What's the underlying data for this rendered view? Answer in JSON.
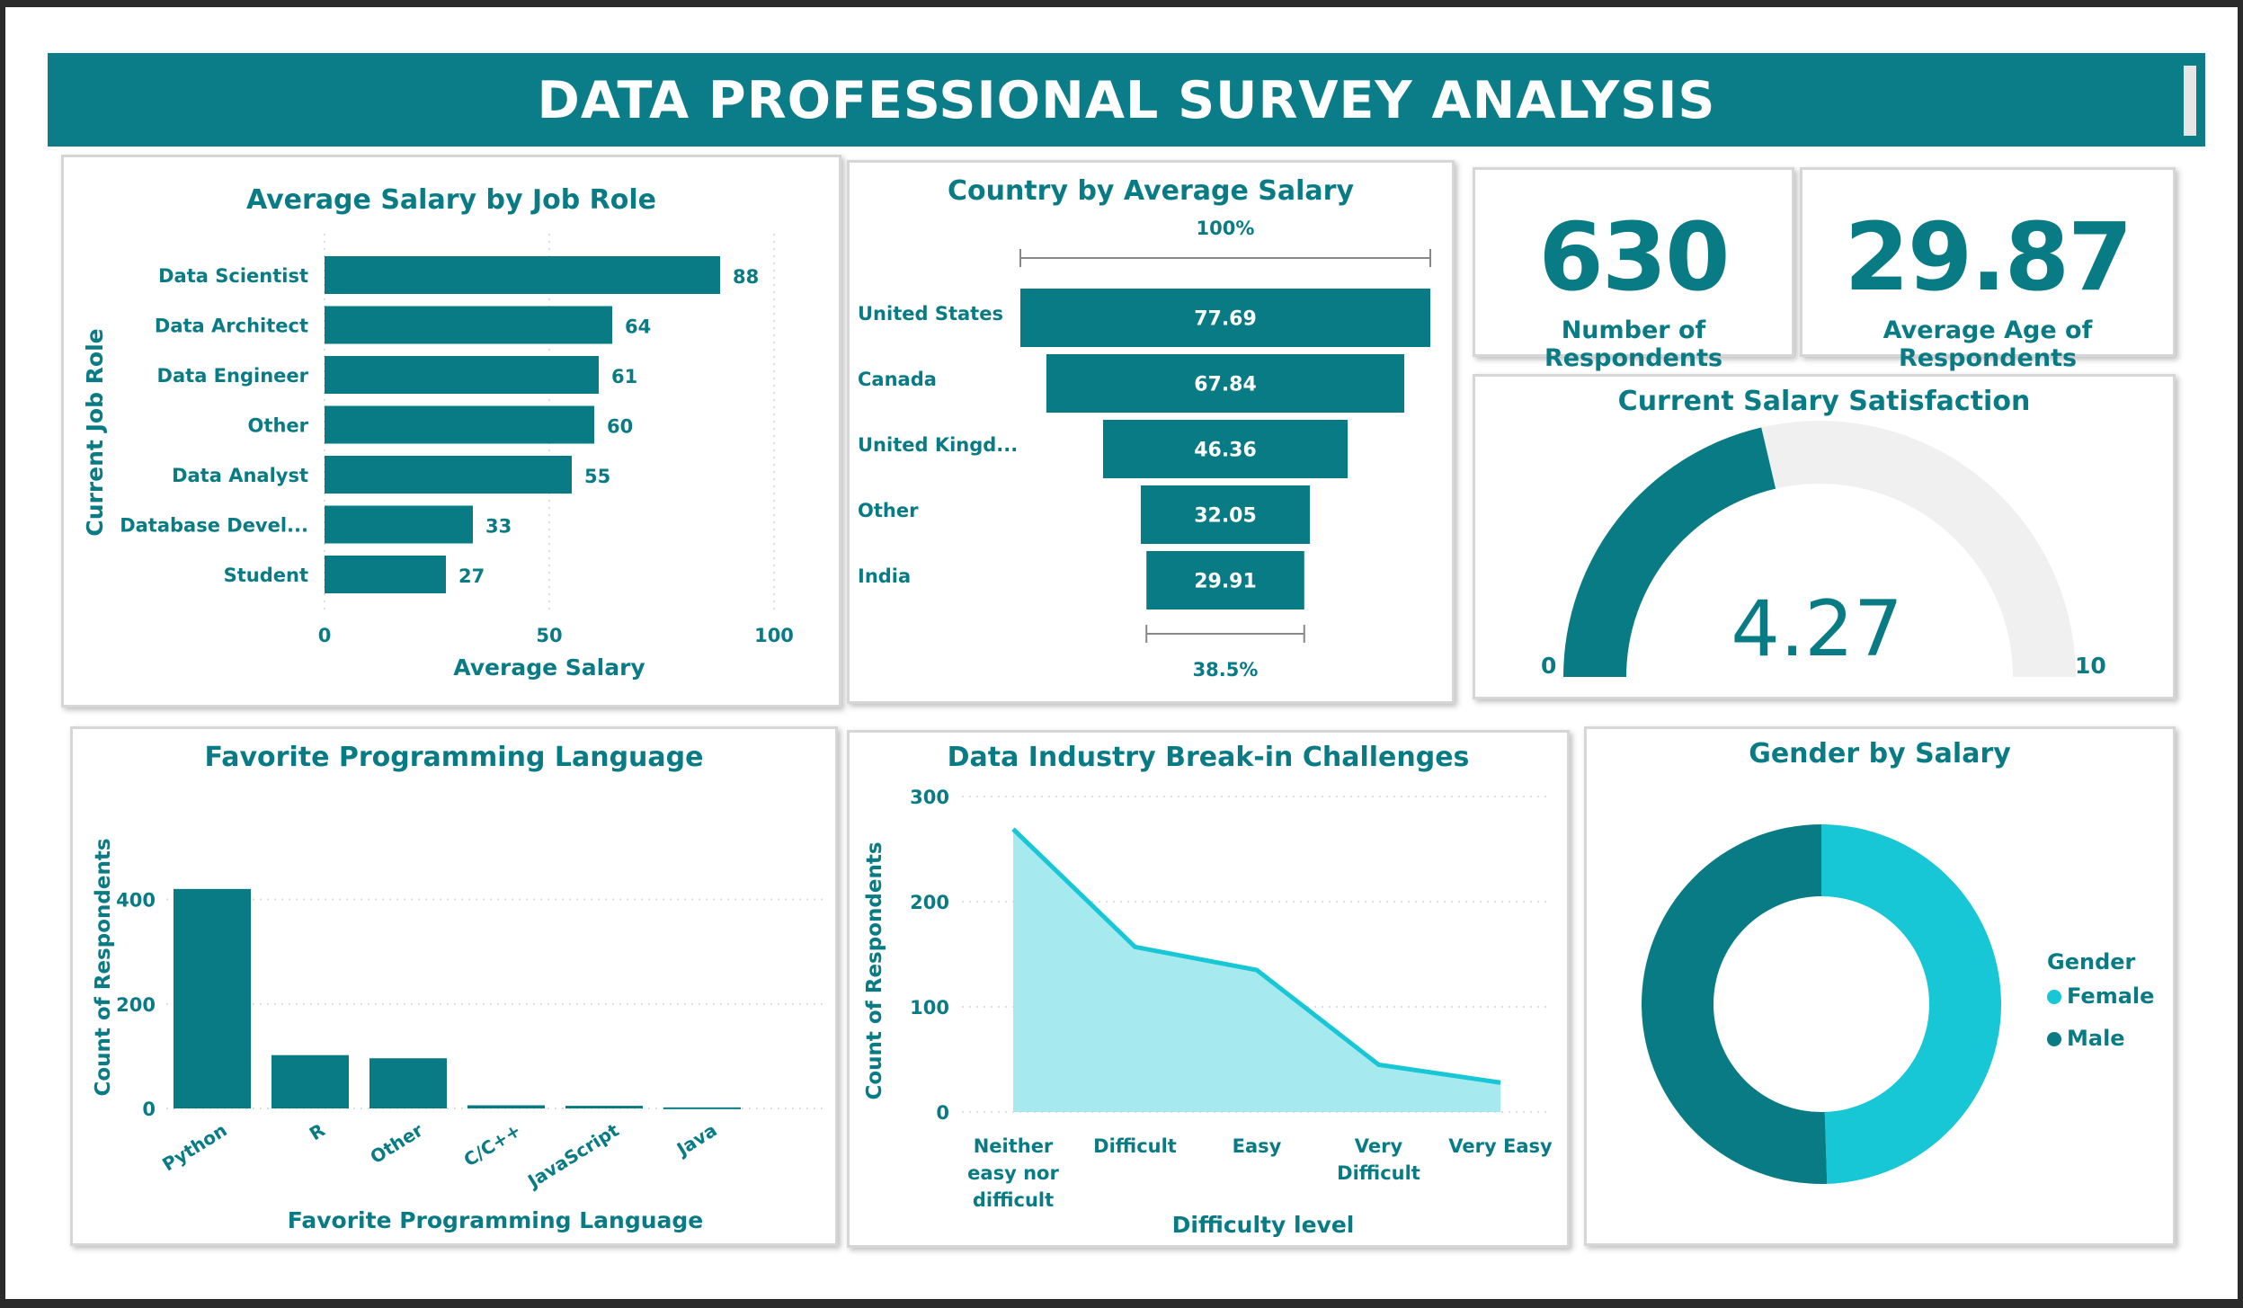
{
  "header": {
    "title": "DATA PROFESSIONAL SURVEY ANALYSIS"
  },
  "colors": {
    "teal": "#097b85",
    "light_teal": "#17c7d6",
    "area_fill": "#a6e9ef",
    "gauge_track": "#f0f0f0"
  },
  "kpis": {
    "respondents": {
      "value": "630",
      "label": "Number of Respondents"
    },
    "avg_age": {
      "value": "29.87",
      "label": "Average Age of Respondents"
    }
  },
  "chart_data": [
    {
      "id": "salary_by_role",
      "type": "bar",
      "orientation": "horizontal",
      "title": "Average Salary by Job Role",
      "xlabel": "Average Salary",
      "ylabel": "Current Job Role",
      "categories": [
        "Data Scientist",
        "Data Architect",
        "Data Engineer",
        "Other",
        "Data Analyst",
        "Database Devel...",
        "Student"
      ],
      "values": [
        88,
        64,
        61,
        60,
        55,
        33,
        27
      ],
      "xlim": [
        0,
        100
      ],
      "xticks": [
        0,
        50,
        100
      ],
      "grid": true
    },
    {
      "id": "country_salary",
      "type": "funnel",
      "title": "Country by Average Salary",
      "categories": [
        "United States",
        "Canada",
        "United Kingd...",
        "Other",
        "India"
      ],
      "values": [
        77.69,
        67.84,
        46.36,
        32.05,
        29.91
      ],
      "value_labels": [
        "77.69",
        "67.84",
        "46.36",
        "32.05",
        "29.91"
      ],
      "top_percent": "100%",
      "bottom_percent": "38.5%"
    },
    {
      "id": "salary_satisfaction",
      "type": "gauge",
      "title": "Current Salary Satisfaction",
      "value": 4.27,
      "value_label": "4.27",
      "min": 0,
      "max": 10,
      "min_label": "0",
      "max_label": "10"
    },
    {
      "id": "programming_language",
      "type": "bar",
      "title": "Favorite Programming Language",
      "xlabel": "Favorite Programming Language",
      "ylabel": "Count of Respondents",
      "categories": [
        "Python",
        "R",
        "Other",
        "C/C++",
        "JavaScript",
        "Java"
      ],
      "values": [
        420,
        102,
        96,
        6,
        5,
        2
      ],
      "ylim": [
        0,
        480
      ],
      "yticks": [
        0,
        200,
        400
      ],
      "grid": true
    },
    {
      "id": "break_in_challenges",
      "type": "area",
      "title": "Data Industry Break-in Challenges",
      "xlabel": "Difficulty level",
      "ylabel": "Count of Respondents",
      "categories": [
        [
          "Neither",
          "easy nor",
          "difficult"
        ],
        [
          "Difficult"
        ],
        [
          "Easy"
        ],
        [
          "Very",
          "Difficult"
        ],
        [
          "Very Easy"
        ]
      ],
      "values": [
        269,
        157,
        135,
        45,
        28
      ],
      "ylim": [
        0,
        300
      ],
      "yticks": [
        0,
        100,
        200,
        300
      ],
      "grid": true
    },
    {
      "id": "gender_salary",
      "type": "pie",
      "title": "Gender by Salary",
      "legend_title": "Gender",
      "categories": [
        "Female",
        "Male"
      ],
      "values": [
        49.5,
        50.5
      ],
      "legend": "right"
    }
  ]
}
